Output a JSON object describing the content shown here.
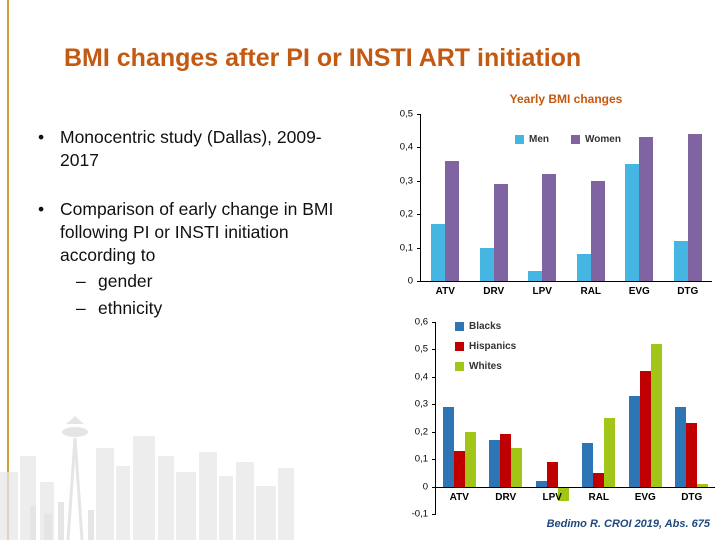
{
  "slide": {
    "title": "BMI changes after PI or INSTI ART initiation",
    "bullet_char": "•",
    "dash_char": "–",
    "bullets": [
      {
        "text": "Monocentric study (Dallas), 2009-2017"
      },
      {
        "text": "Comparison of early change in BMI following PI or INSTI initiation according to",
        "subs": [
          "gender",
          "ethnicity"
        ]
      }
    ],
    "citation": "Bedimo R. CROI 2019, Abs. 675"
  },
  "colors": {
    "title_orange": "#C45911",
    "accent_gold": "#C9A13B",
    "citation_blue": "#1F497D"
  },
  "chart_data": [
    {
      "type": "bar",
      "title": "Yearly BMI changes",
      "categories": [
        "ATV",
        "DRV",
        "LPV",
        "RAL",
        "EVG",
        "DTG"
      ],
      "series": [
        {
          "name": "Men",
          "color": "#45B5E2",
          "values": [
            0.17,
            0.1,
            0.03,
            0.08,
            0.35,
            0.12
          ]
        },
        {
          "name": "Women",
          "color": "#8064A2",
          "values": [
            0.36,
            0.29,
            0.32,
            0.3,
            0.43,
            0.44
          ]
        }
      ],
      "ylim": [
        0,
        0.5
      ],
      "yticks": [
        "0,5",
        "0,4",
        "0,3",
        "0,2",
        "0,1",
        "0"
      ],
      "grid": false,
      "legend_position": "top-center-horizontal"
    },
    {
      "type": "bar",
      "title": "",
      "categories": [
        "ATV",
        "DRV",
        "LPV",
        "RAL",
        "EVG",
        "DTG"
      ],
      "series": [
        {
          "name": "Blacks",
          "color": "#2E75B6",
          "values": [
            0.29,
            0.17,
            0.02,
            0.16,
            0.33,
            0.29
          ]
        },
        {
          "name": "Hispanics",
          "color": "#C00000",
          "values": [
            0.13,
            0.19,
            0.09,
            0.05,
            0.42,
            0.23
          ]
        },
        {
          "name": "Whites",
          "color": "#A2C617",
          "values": [
            0.2,
            0.14,
            -0.05,
            0.25,
            0.52,
            0.01
          ]
        }
      ],
      "ylim": [
        -0.1,
        0.6
      ],
      "yticks": [
        "0,6",
        "0,5",
        "0,4",
        "0,3",
        "0,2",
        "0,1",
        "0",
        "-0,1"
      ],
      "grid": false,
      "legend_position": "top-left-vertical"
    }
  ]
}
